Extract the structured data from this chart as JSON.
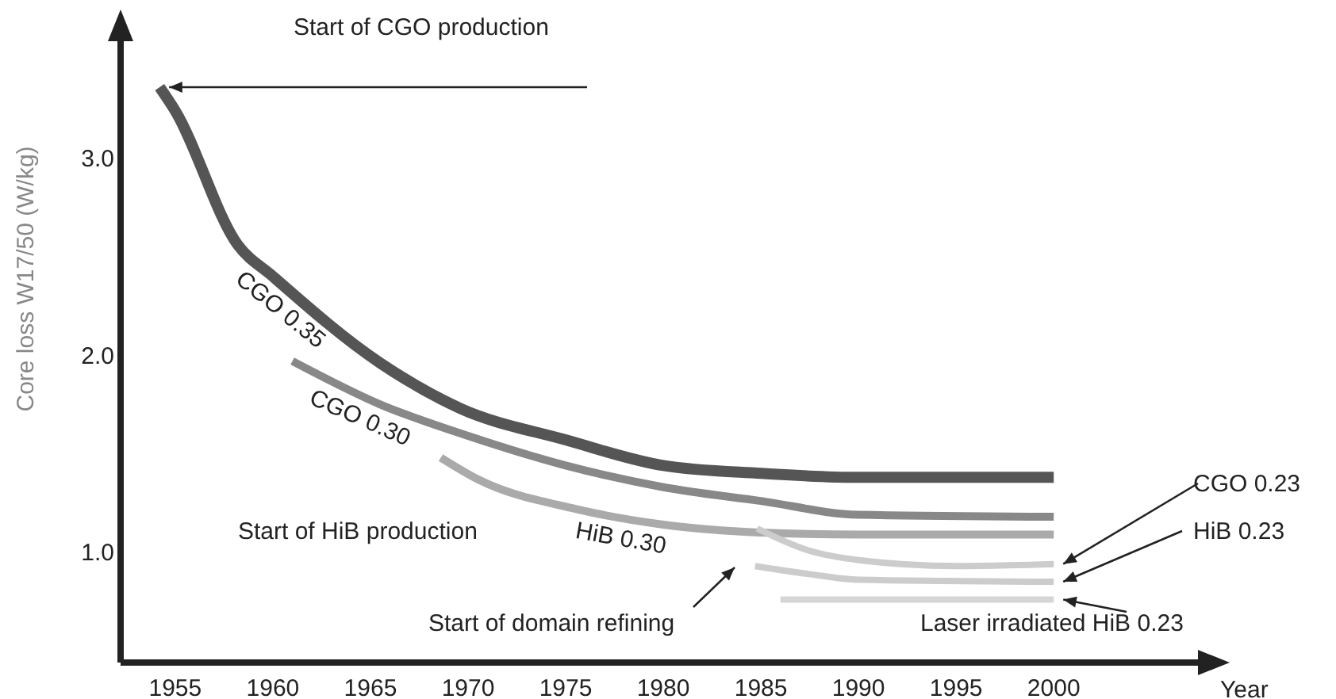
{
  "chart_data": {
    "type": "line",
    "ylabel": "Core loss W17/50 (W/kg)",
    "xlabel": "Year",
    "xlim": [
      1952.2,
      2008.2
    ],
    "ylim": [
      0.45,
      3.7
    ],
    "xticks": [
      1955,
      1960,
      1965,
      1970,
      1975,
      1980,
      1985,
      1990,
      1995,
      2000
    ],
    "yticks": [
      {
        "value": 1,
        "label": "1.0"
      },
      {
        "value": 2,
        "label": "2.0"
      },
      {
        "value": 3,
        "label": "3.0"
      }
    ],
    "grid": false,
    "marker": "none",
    "line_style": "solid",
    "series": [
      {
        "name": "CGO 0.35",
        "color": "#555555",
        "x": [
          1954.2,
          1955,
          1958.2,
          1960,
          1965.5,
          1969.6,
          1975,
          1980,
          1985,
          1990,
          2000
        ],
        "values": [
          3.37,
          3.25,
          2.57,
          2.41,
          1.97,
          1.74,
          1.58,
          1.45,
          1.41,
          1.39,
          1.39
        ]
      },
      {
        "name": "CGO 0.30",
        "color": "#888888",
        "x": [
          1961,
          1965.5,
          1970,
          1975,
          1980,
          1985,
          1990,
          2000
        ],
        "values": [
          1.98,
          1.76,
          1.6,
          1.45,
          1.34,
          1.27,
          1.2,
          1.19
        ]
      },
      {
        "name": "HiB 0.30",
        "color": "#aaaaaa",
        "x": [
          1968.6,
          1970.5,
          1975.5,
          1980,
          1985,
          1990,
          2000
        ],
        "values": [
          1.49,
          1.38,
          1.23,
          1.15,
          1.11,
          1.1,
          1.1
        ]
      },
      {
        "name": "CGO 0.23",
        "color": "#cccccc",
        "x": [
          1984.8,
          1987.4,
          1990,
          1995,
          2000
        ],
        "values": [
          1.13,
          1.02,
          0.97,
          0.94,
          0.95
        ]
      },
      {
        "name": "HiB 0.23",
        "color": "#cccccc",
        "x": [
          1984.7,
          1987.4,
          1990,
          2000
        ],
        "values": [
          0.94,
          0.9,
          0.87,
          0.86
        ]
      },
      {
        "name": "Laser irradiated HiB 0.23",
        "color": "#d5d5d5",
        "x": [
          1986,
          2000
        ],
        "values": [
          0.77,
          0.77
        ]
      }
    ],
    "annotations": [
      "Start of CGO production",
      "Start of HiB production",
      "Start of domain refining"
    ]
  }
}
